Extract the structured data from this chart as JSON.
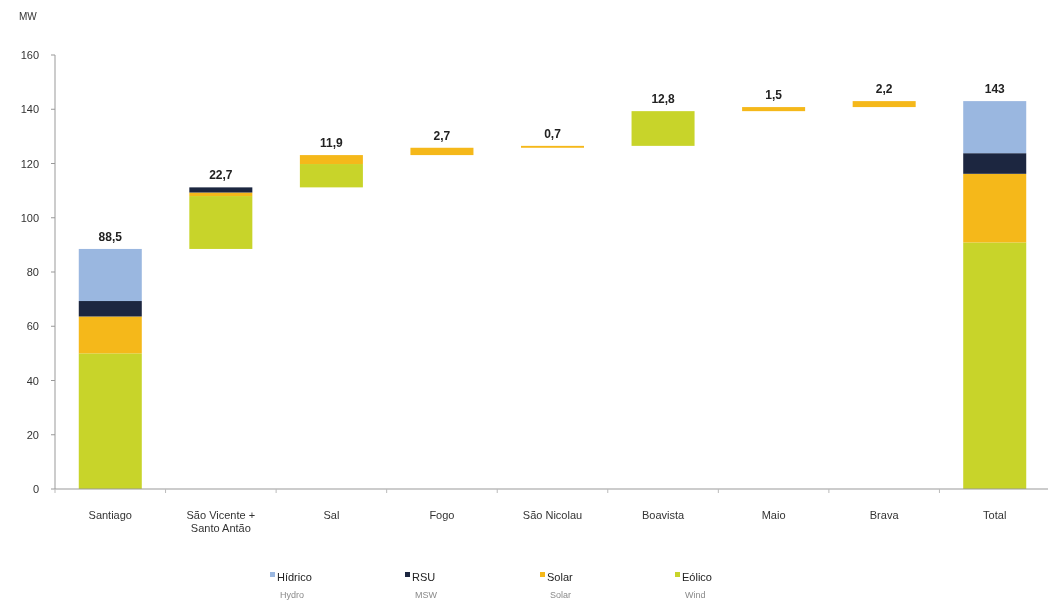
{
  "chart_data": {
    "type": "bar",
    "ylabel": "MW",
    "categories": [
      "Santiago",
      "São Vicente + Santo Antão",
      "Sal",
      "Fogo",
      "São Nicolau",
      "Boavista",
      "Maio",
      "Brava",
      "Total"
    ],
    "series": [
      {
        "name": "Eólico",
        "color": "#c8d42a",
        "values": [
          50,
          19.5,
          8.6,
          null,
          null,
          12.8,
          null,
          null,
          90.9
        ],
        "base": [
          0,
          88.5,
          111.2,
          null,
          null,
          126.5,
          null,
          null,
          0
        ]
      },
      {
        "name": "Solar",
        "color": "#f5b81a",
        "values": [
          13.6,
          1.3,
          3.3,
          2.7,
          0.7,
          null,
          1.5,
          2.2,
          25.3
        ],
        "base": [
          50,
          108,
          119.8,
          123.1,
          125.8,
          null,
          139.3,
          140.8,
          90.9
        ]
      },
      {
        "name": "RSU",
        "color": "#1c2640",
        "values": [
          5.7,
          1.9,
          null,
          null,
          null,
          null,
          null,
          null,
          7.6
        ],
        "base": [
          63.6,
          109.3,
          null,
          null,
          null,
          null,
          null,
          null,
          116.2
        ]
      },
      {
        "name": "Hídrico",
        "color": "#9ab7e0",
        "values": [
          19.2,
          null,
          null,
          null,
          null,
          null,
          null,
          null,
          19.2
        ],
        "base": [
          69.3,
          null,
          null,
          null,
          null,
          null,
          null,
          null,
          123.8
        ]
      }
    ],
    "totals": [
      "88,5",
      "22,7",
      "11,9",
      "2,7",
      "0,7",
      "12,8",
      "1,5",
      "2,2",
      "143"
    ],
    "ylim": [
      0,
      160
    ],
    "yticks": [
      0,
      20,
      40,
      60,
      80,
      100,
      120,
      140,
      160
    ],
    "legend": "bottom",
    "annotations": [
      "Hydro",
      "MSW",
      "Solar",
      "Wind"
    ]
  }
}
